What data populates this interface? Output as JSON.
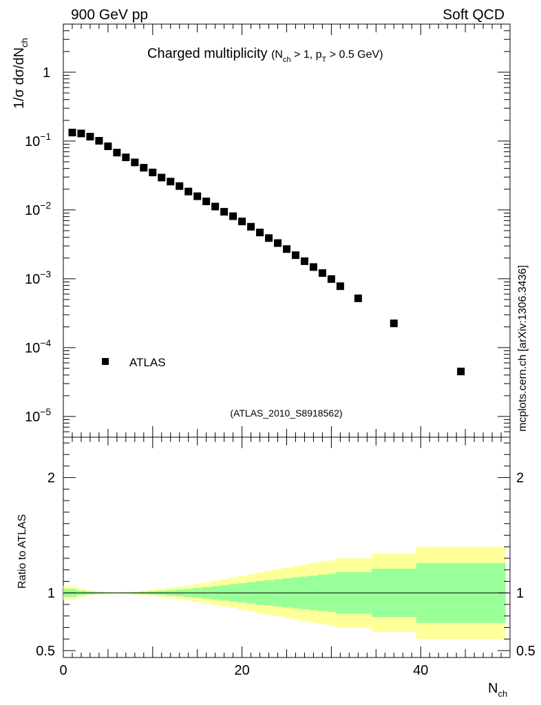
{
  "header": {
    "left": "900 GeV pp",
    "right": "Soft QCD"
  },
  "watermark": "mcplots.cern.ch [arXiv:1306.3436]",
  "chart_data": [
    {
      "type": "scatter",
      "panel": "main",
      "title": "Charged multiplicity",
      "subtitle": "(N_ch > 1, p_T > 0.5 GeV)",
      "ylabel": "1/σ dσ/dN_ch",
      "yscale": "log",
      "ylim": [
        5e-06,
        5
      ],
      "xlim": [
        0,
        50
      ],
      "yticks": [
        {
          "value": 1e-05,
          "base": "10",
          "exp": "−5"
        },
        {
          "value": 0.0001,
          "base": "10",
          "exp": "−4"
        },
        {
          "value": 0.001,
          "base": "10",
          "exp": "−3"
        },
        {
          "value": 0.01,
          "base": "10",
          "exp": "−2"
        },
        {
          "value": 0.1,
          "base": "10",
          "exp": "−1"
        },
        {
          "value": 1,
          "base": "1",
          "exp": ""
        }
      ],
      "legend": {
        "label": "ATLAS",
        "placement": "lower-left"
      },
      "reference": "(ATLAS_2010_S8918562)",
      "series": [
        {
          "name": "ATLAS",
          "color": "#000000",
          "x": [
            1,
            2,
            3,
            4,
            5,
            6,
            7,
            8,
            9,
            10,
            11,
            12,
            13,
            14,
            15,
            16,
            17,
            18,
            19,
            20,
            21,
            22,
            23,
            24,
            25,
            26,
            27,
            28,
            29,
            30,
            31,
            33,
            37,
            44.5
          ],
          "y": [
            0.133,
            0.129,
            0.116,
            0.101,
            0.084,
            0.068,
            0.058,
            0.049,
            0.041,
            0.035,
            0.0295,
            0.0258,
            0.0222,
            0.0185,
            0.0158,
            0.0133,
            0.0112,
            0.0094,
            0.0081,
            0.0068,
            0.0057,
            0.0047,
            0.0039,
            0.0033,
            0.0027,
            0.0022,
            0.0018,
            0.00148,
            0.00121,
            0.00099,
            0.00078,
            0.00052,
            0.000225,
            4.5e-05
          ]
        }
      ]
    },
    {
      "type": "area",
      "panel": "ratio",
      "ylabel": "Ratio to ATLAS",
      "xlabel": "N_ch",
      "xlim": [
        0,
        50
      ],
      "ylim": [
        0.44,
        2.35
      ],
      "xticks": [
        0,
        20,
        40
      ],
      "yticks": [
        0.5,
        1,
        2
      ],
      "reference_line": 1,
      "bands": {
        "inner_color": "#99ff99",
        "outer_color": "#ffff99",
        "edges": [
          0,
          1.5,
          2.5,
          3.5,
          4.5,
          5.5,
          6.5,
          7.5,
          8.5,
          9.5,
          10.5,
          11.5,
          12.5,
          13.5,
          14.5,
          15.5,
          16.5,
          17.5,
          18.5,
          19.5,
          20.5,
          21.5,
          22.5,
          23.5,
          24.5,
          25.5,
          26.5,
          27.5,
          28.5,
          29.5,
          30.5,
          34.5,
          39.5,
          49.5
        ],
        "inner": [
          0.035,
          0.018,
          0.012,
          0.008,
          0.005,
          0.004,
          0.005,
          0.007,
          0.01,
          0.014,
          0.018,
          0.023,
          0.029,
          0.035,
          0.042,
          0.05,
          0.058,
          0.066,
          0.075,
          0.084,
          0.093,
          0.102,
          0.11,
          0.118,
          0.126,
          0.134,
          0.142,
          0.15,
          0.158,
          0.165,
          0.18,
          0.21,
          0.26
        ],
        "outer": [
          0.06,
          0.035,
          0.02,
          0.012,
          0.008,
          0.006,
          0.009,
          0.013,
          0.019,
          0.027,
          0.036,
          0.045,
          0.055,
          0.066,
          0.078,
          0.09,
          0.103,
          0.116,
          0.13,
          0.145,
          0.16,
          0.175,
          0.19,
          0.204,
          0.218,
          0.232,
          0.246,
          0.258,
          0.27,
          0.282,
          0.3,
          0.34,
          0.4
        ]
      }
    }
  ]
}
